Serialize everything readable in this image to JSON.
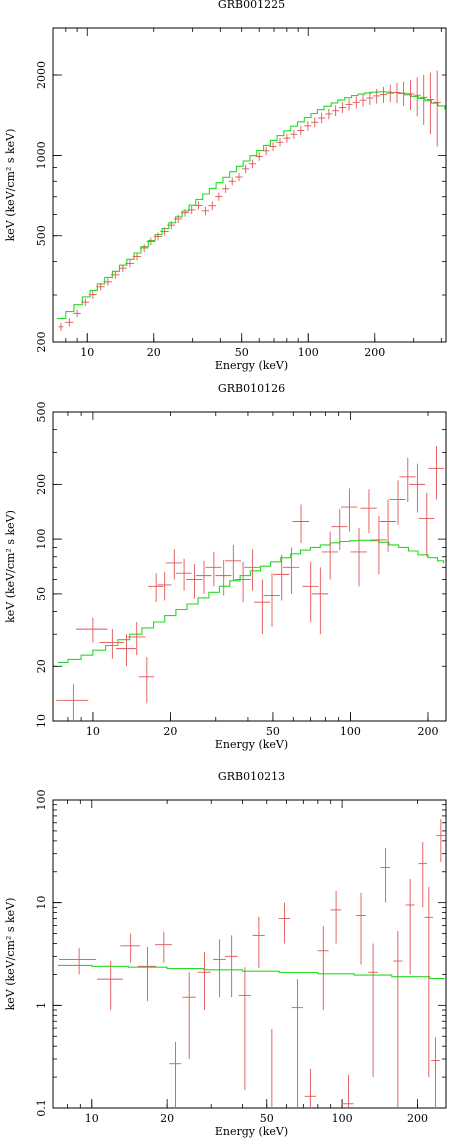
{
  "chart_data": [
    {
      "type": "scatter",
      "title": "GRB001225",
      "xlabel": "Energy (keV)",
      "ylabel": "keV (keV/cm² s keV)",
      "xscale": "log",
      "yscale": "log",
      "xlim": [
        7,
        420
      ],
      "ylim": [
        200,
        3000
      ],
      "xticks": [
        10,
        20,
        50,
        100,
        200
      ],
      "yticks": [
        200,
        500,
        1000,
        2000
      ],
      "colors": {
        "data": "#e05555",
        "model": "#22dd22"
      },
      "points": [
        [
          7.6,
          228,
          0.2,
          8
        ],
        [
          8.3,
          237,
          0.35,
          8
        ],
        [
          9.0,
          256,
          0.35,
          8
        ],
        [
          9.8,
          282,
          0.4,
          9
        ],
        [
          10.6,
          301,
          0.45,
          10
        ],
        [
          11.5,
          322,
          0.5,
          10
        ],
        [
          12.4,
          336,
          0.55,
          11
        ],
        [
          13.4,
          357,
          0.6,
          12
        ],
        [
          14.5,
          378,
          0.6,
          12
        ],
        [
          15.6,
          394,
          0.7,
          13
        ],
        [
          16.8,
          418,
          0.75,
          14
        ],
        [
          18.1,
          450,
          0.8,
          15
        ],
        [
          19.4,
          476,
          0.85,
          16
        ],
        [
          20.9,
          497,
          0.9,
          17
        ],
        [
          22.4,
          519,
          1.0,
          18
        ],
        [
          24.0,
          548,
          1.0,
          19
        ],
        [
          25.8,
          578,
          1.1,
          20
        ],
        [
          27.7,
          610,
          1.2,
          21
        ],
        [
          29.7,
          625,
          1.2,
          22
        ],
        [
          31.9,
          649,
          1.3,
          23
        ],
        [
          34.3,
          620,
          1.4,
          23
        ],
        [
          36.8,
          648,
          1.5,
          24
        ],
        [
          39.4,
          701,
          1.5,
          25
        ],
        [
          42.3,
          750,
          1.6,
          27
        ],
        [
          45.3,
          800,
          1.7,
          28
        ],
        [
          48.6,
          830,
          1.9,
          30
        ],
        [
          52.1,
          890,
          2.0,
          32
        ],
        [
          55.9,
          930,
          2.1,
          34
        ],
        [
          60.0,
          990,
          2.3,
          36
        ],
        [
          64.5,
          1040,
          2.4,
          38
        ],
        [
          69.3,
          1080,
          2.6,
          40
        ],
        [
          74.5,
          1120,
          2.8,
          42
        ],
        [
          80.1,
          1160,
          3.0,
          45
        ],
        [
          86.1,
          1200,
          3.2,
          47
        ],
        [
          92.6,
          1240,
          3.5,
          50
        ],
        [
          99.6,
          1290,
          3.7,
          53
        ],
        [
          107,
          1330,
          4.0,
          56
        ],
        [
          115,
          1380,
          4.3,
          60
        ],
        [
          124,
          1430,
          4.6,
          64
        ],
        [
          133,
          1470,
          5.0,
          68
        ],
        [
          143,
          1510,
          5.3,
          72
        ],
        [
          153,
          1550,
          5.7,
          77
        ],
        [
          165,
          1580,
          6.1,
          82
        ],
        [
          177,
          1610,
          6.6,
          88
        ],
        [
          190,
          1640,
          7.1,
          95
        ],
        [
          204,
          1670,
          7.6,
          105
        ],
        [
          219,
          1690,
          8.2,
          115
        ],
        [
          235,
          1710,
          8.8,
          130
        ],
        [
          252,
          1720,
          9.4,
          150
        ],
        [
          270,
          1710,
          10,
          180
        ],
        [
          290,
          1700,
          11,
          220
        ],
        [
          311,
          1680,
          12,
          280
        ],
        [
          333,
          1650,
          13,
          350
        ],
        [
          357,
          1620,
          14,
          420
        ],
        [
          383,
          1580,
          15,
          500
        ]
      ],
      "model": [
        [
          7.3,
          245
        ],
        [
          8.0,
          260
        ],
        [
          8.7,
          276
        ],
        [
          9.5,
          295
        ],
        [
          10.3,
          312
        ],
        [
          11.1,
          330
        ],
        [
          12.0,
          349
        ],
        [
          13.0,
          368
        ],
        [
          14.0,
          388
        ],
        [
          15.1,
          408
        ],
        [
          16.3,
          431
        ],
        [
          17.5,
          455
        ],
        [
          18.9,
          480
        ],
        [
          20.3,
          505
        ],
        [
          21.8,
          532
        ],
        [
          23.4,
          559
        ],
        [
          25.1,
          589
        ],
        [
          26.9,
          619
        ],
        [
          28.9,
          651
        ],
        [
          31.0,
          684
        ],
        [
          33.3,
          717
        ],
        [
          35.7,
          752
        ],
        [
          38.3,
          790
        ],
        [
          41.1,
          828
        ],
        [
          44.1,
          869
        ],
        [
          47.3,
          910
        ],
        [
          50.8,
          953
        ],
        [
          54.5,
          998
        ],
        [
          58.5,
          1043
        ],
        [
          62.8,
          1090
        ],
        [
          67.4,
          1138
        ],
        [
          72.3,
          1186
        ],
        [
          77.6,
          1236
        ],
        [
          83.3,
          1286
        ],
        [
          89.4,
          1336
        ],
        [
          96.0,
          1386
        ],
        [
          103,
          1435
        ],
        [
          110,
          1483
        ],
        [
          118,
          1529
        ],
        [
          127,
          1572
        ],
        [
          136,
          1611
        ],
        [
          146,
          1645
        ],
        [
          157,
          1674
        ],
        [
          168,
          1697
        ],
        [
          180,
          1714
        ],
        [
          193,
          1725
        ],
        [
          207,
          1730
        ],
        [
          222,
          1728
        ],
        [
          238,
          1720
        ],
        [
          255,
          1706
        ],
        [
          273,
          1686
        ],
        [
          293,
          1662
        ],
        [
          314,
          1634
        ],
        [
          337,
          1602
        ],
        [
          361,
          1568
        ],
        [
          387,
          1532
        ],
        [
          415,
          1495
        ]
      ]
    },
    {
      "type": "scatter",
      "title": "GRB010126",
      "xlabel": "Energy (keV)",
      "ylabel": "keV (keV/cm² s keV)",
      "xscale": "log",
      "yscale": "log",
      "xlim": [
        7,
        235
      ],
      "ylim": [
        10,
        500
      ],
      "xticks": [
        10,
        20,
        50,
        100,
        200
      ],
      "yticks": [
        10,
        20,
        50,
        100,
        200,
        500
      ],
      "colors": {
        "data": "#e05555",
        "model": "#22dd22"
      },
      "points": [
        [
          8.4,
          13,
          1.2,
          3
        ],
        [
          10.0,
          32,
          1.4,
          5
        ],
        [
          11.9,
          27,
          1.3,
          5
        ],
        [
          13.5,
          25,
          1.2,
          5
        ],
        [
          14.8,
          29,
          1.2,
          6
        ],
        [
          16.2,
          17.5,
          1.1,
          5
        ],
        [
          17.6,
          55,
          1.2,
          10
        ],
        [
          19.0,
          56,
          1.2,
          10
        ],
        [
          20.7,
          74,
          1.5,
          14
        ],
        [
          22.6,
          65,
          1.6,
          13
        ],
        [
          24.8,
          60,
          1.8,
          13
        ],
        [
          27.0,
          63,
          1.9,
          13
        ],
        [
          29.5,
          70,
          2.1,
          15
        ],
        [
          32.2,
          63,
          2.3,
          14
        ],
        [
          35.1,
          76,
          2.5,
          17
        ],
        [
          38.3,
          60,
          2.8,
          15
        ],
        [
          41.7,
          70,
          3.0,
          18
        ],
        [
          45.5,
          45,
          3.3,
          15
        ],
        [
          49.6,
          49,
          3.6,
          16
        ],
        [
          54.1,
          64,
          3.9,
          18
        ],
        [
          59.0,
          70,
          4.3,
          20
        ],
        [
          64.3,
          125,
          4.7,
          30
        ],
        [
          70.1,
          55,
          5.1,
          20
        ],
        [
          76.4,
          50,
          5.6,
          20
        ],
        [
          83.4,
          85,
          6.1,
          25
        ],
        [
          90.9,
          117,
          6.6,
          30
        ],
        [
          99.1,
          150,
          7.2,
          40
        ],
        [
          108,
          85,
          7.9,
          30
        ],
        [
          118,
          148,
          8.6,
          40
        ],
        [
          129,
          99,
          9.4,
          35
        ],
        [
          140,
          125,
          10,
          40
        ],
        [
          153,
          165,
          11,
          45
        ],
        [
          167,
          220,
          12,
          60
        ],
        [
          182,
          200,
          13,
          60
        ],
        [
          198,
          130,
          14,
          50
        ],
        [
          216,
          245,
          15,
          80
        ]
      ],
      "model": [
        [
          7.3,
          21
        ],
        [
          8.0,
          21.8
        ],
        [
          9.0,
          23
        ],
        [
          10.0,
          24.5
        ],
        [
          11.2,
          26
        ],
        [
          12.5,
          28
        ],
        [
          13.9,
          30
        ],
        [
          15.5,
          32.5
        ],
        [
          17.2,
          35
        ],
        [
          19.0,
          38
        ],
        [
          21.0,
          41
        ],
        [
          23.2,
          44
        ],
        [
          25.6,
          47.5
        ],
        [
          28.2,
          51
        ],
        [
          31.0,
          55
        ],
        [
          34.0,
          59
        ],
        [
          37.3,
          63
        ],
        [
          40.9,
          67
        ],
        [
          44.8,
          71
        ],
        [
          49.0,
          75
        ],
        [
          53.6,
          79
        ],
        [
          58.6,
          83
        ],
        [
          64.0,
          87
        ],
        [
          70.0,
          90
        ],
        [
          76.4,
          93
        ],
        [
          83.5,
          95.5
        ],
        [
          91.2,
          97
        ],
        [
          99.6,
          98
        ],
        [
          108,
          98.5
        ],
        [
          118,
          98
        ],
        [
          129,
          96
        ],
        [
          141,
          93
        ],
        [
          154,
          90
        ],
        [
          168,
          86
        ],
        [
          183,
          82
        ],
        [
          200,
          79
        ],
        [
          218,
          76
        ],
        [
          230,
          74
        ]
      ]
    },
    {
      "type": "scatter",
      "title": "GRB010213",
      "xlabel": "Energy (keV)",
      "ylabel": "keV (keV/cm² s keV)",
      "xscale": "log",
      "yscale": "log",
      "xlim": [
        7,
        260
      ],
      "ylim": [
        0.1,
        100
      ],
      "xticks": [
        10,
        20,
        50,
        100,
        200
      ],
      "yticks": [
        0.1,
        1,
        10,
        100
      ],
      "colors": {
        "data": "#e05555",
        "model": "#22dd22"
      },
      "points": [
        [
          8.9,
          2.8,
          1.5,
          0.8
        ],
        [
          11.9,
          1.8,
          1.4,
          0.9
        ],
        [
          14.3,
          3.8,
          1.3,
          1.2
        ],
        [
          16.7,
          2.4,
          1.4,
          1.3
        ],
        [
          19.4,
          3.9,
          1.5,
          1.3
        ],
        [
          21.6,
          0.27,
          1.2,
          0.17
        ],
        [
          24.5,
          1.2,
          1.5,
          0.9
        ],
        [
          28.2,
          2.1,
          1.7,
          1.2
        ],
        [
          32.4,
          2.8,
          1.9,
          1.6
        ],
        [
          36.2,
          3.0,
          2.1,
          1.8
        ],
        [
          40.9,
          1.25,
          2.3,
          1.1
        ],
        [
          46.5,
          4.8,
          2.6,
          2.5
        ],
        [
          52.4,
          0.09,
          2.8,
          0.5
        ],
        [
          58.9,
          7.0,
          3.1,
          3.0
        ],
        [
          66.3,
          0.95,
          3.4,
          0.85
        ],
        [
          74.7,
          0.13,
          3.8,
          0.11
        ],
        [
          84.1,
          3.4,
          4.2,
          2.5
        ],
        [
          94.6,
          8.5,
          4.6,
          4.5
        ],
        [
          106,
          0.11,
          5.0,
          0.1
        ],
        [
          119,
          7.5,
          5.5,
          5.0
        ],
        [
          133,
          2.1,
          6.0,
          1.9
        ],
        [
          149,
          22,
          6.5,
          12
        ],
        [
          167,
          2.7,
          7.1,
          2.6
        ],
        [
          187,
          9.5,
          7.7,
          7.5
        ],
        [
          210,
          24,
          8.4,
          15
        ],
        [
          222,
          7.2,
          8.8,
          7.0
        ],
        [
          236,
          0.29,
          9.3,
          0.2
        ],
        [
          248,
          45,
          9.8,
          20
        ]
      ],
      "model": [
        [
          7.3,
          2.45
        ],
        [
          10.0,
          2.4
        ],
        [
          14.0,
          2.35
        ],
        [
          20.0,
          2.28
        ],
        [
          28.0,
          2.22
        ],
        [
          40.0,
          2.15
        ],
        [
          56.0,
          2.09
        ],
        [
          80.0,
          2.03
        ],
        [
          112,
          1.97
        ],
        [
          158,
          1.9
        ],
        [
          224,
          1.82
        ],
        [
          255,
          1.8
        ]
      ]
    }
  ]
}
